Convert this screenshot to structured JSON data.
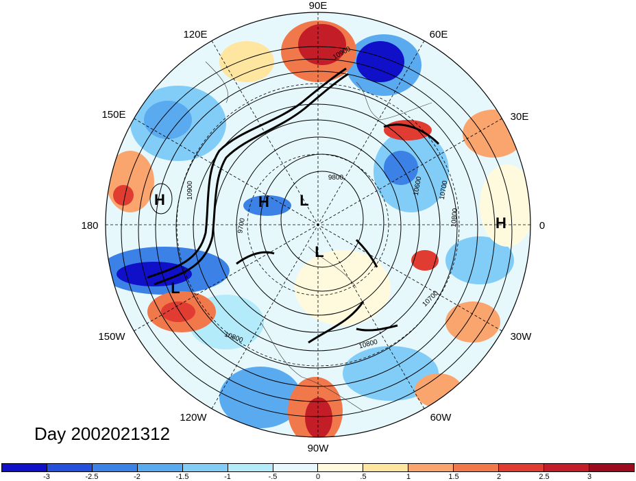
{
  "title": "Day 2002021312",
  "longitude_labels": [
    {
      "key": "90E",
      "text": "90E"
    },
    {
      "key": "60E",
      "text": "60E"
    },
    {
      "key": "30E",
      "text": "30E"
    },
    {
      "key": "0",
      "text": "0"
    },
    {
      "key": "30W",
      "text": "30W"
    },
    {
      "key": "60W",
      "text": "60W"
    },
    {
      "key": "90W",
      "text": "90W"
    },
    {
      "key": "120W",
      "text": "120W"
    },
    {
      "key": "150W",
      "text": "150W"
    },
    {
      "key": "180",
      "text": "180"
    },
    {
      "key": "150E",
      "text": "150E"
    },
    {
      "key": "120E",
      "text": "120E"
    }
  ],
  "pressure_centers": [
    {
      "key": "h-pacific",
      "text": "H"
    },
    {
      "key": "h-siberia",
      "text": "H"
    },
    {
      "key": "l-arctic",
      "text": "L"
    },
    {
      "key": "l-canada",
      "text": "L"
    },
    {
      "key": "l-gulf-alaska",
      "text": "L"
    },
    {
      "key": "h-atlantic",
      "text": "H"
    }
  ],
  "contour_labels": [
    {
      "key": "c1",
      "text": "10900"
    },
    {
      "key": "c2",
      "text": "10900"
    },
    {
      "key": "c3",
      "text": "9800"
    },
    {
      "key": "c4",
      "text": "9700"
    },
    {
      "key": "c5",
      "text": "10700"
    },
    {
      "key": "c6",
      "text": "10800"
    },
    {
      "key": "c7",
      "text": "10700"
    },
    {
      "key": "c8",
      "text": "10800"
    },
    {
      "key": "c9",
      "text": "10800"
    },
    {
      "key": "c10",
      "text": "10600"
    }
  ],
  "colorbar": {
    "colors": [
      "#1010c8",
      "#2550dc",
      "#3c82e6",
      "#5aaaf0",
      "#82cdf8",
      "#b4ebfa",
      "#e6f8fc",
      "#fffade",
      "#ffe6a0",
      "#faa56e",
      "#f0784b",
      "#e13c32",
      "#c31e28",
      "#9b0a1e"
    ],
    "ticks": [
      "-3",
      "-2.5",
      "-2",
      "-1.5",
      "-1",
      "-.5",
      "0",
      ".5",
      "1",
      "1.5",
      "2",
      "2.5",
      "3"
    ]
  }
}
